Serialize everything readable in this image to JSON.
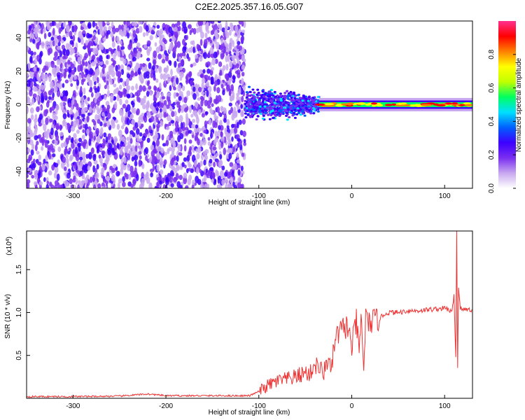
{
  "title": "C2E2.2025.357.16.05.G07",
  "chart_data": [
    {
      "type": "heatmap",
      "xlabel": "Height of straight line (km)",
      "ylabel": "Frequency (Hz)",
      "xlim": [
        -350,
        130
      ],
      "ylim": [
        -50,
        50
      ],
      "xticks": [
        -300,
        -200,
        -100,
        0,
        100
      ],
      "yticks": [
        -40,
        -20,
        0,
        20,
        40
      ],
      "colorbar": {
        "label": "Normalized spectral amplitude",
        "range": [
          0,
          1
        ],
        "ticks": [
          "0.0",
          "0.2",
          "0.4",
          "0.6",
          "0.8"
        ],
        "colors": [
          "#ffffff",
          "#c8a8f0",
          "#7a2ef0",
          "#3c00ff",
          "#0060ff",
          "#00e0ff",
          "#00ff60",
          "#c0ff00",
          "#ffff00",
          "#ff8000",
          "#ff0000",
          "#ff3090"
        ]
      },
      "regions": [
        {
          "x": [
            -350,
            -115
          ],
          "freq_band": [
            -50,
            50
          ],
          "amplitude": "0.1-0.3 (noise)"
        },
        {
          "x": [
            -115,
            -35
          ],
          "freq_band": [
            -12,
            12
          ],
          "amplitude": "0.3-0.6"
        },
        {
          "x": [
            -35,
            130
          ],
          "freq_band": [
            -2,
            2
          ],
          "amplitude": "0.6-1.0"
        }
      ]
    },
    {
      "type": "line",
      "xlabel": "Height of straight line (km)",
      "ylabel": "SNR (10 * v/v)",
      "yscale_label": "(x10",
      "yscale_exp": "4",
      "yscale_close": ")",
      "xlim": [
        -350,
        130
      ],
      "ylim": [
        0,
        1.95
      ],
      "xticks": [
        -300,
        -200,
        -100,
        0,
        100
      ],
      "yticks": [
        0.5,
        1.0,
        1.5
      ],
      "ytick_labels": [
        "0.5",
        "1.0",
        "1.5"
      ],
      "series": [
        {
          "color": "#ee3333",
          "x": [
            -350,
            -300,
            -250,
            -220,
            -200,
            -150,
            -110,
            -100,
            -90,
            -80,
            -70,
            -60,
            -50,
            -45,
            -40,
            -35,
            -30,
            -25,
            -22,
            -20,
            -15,
            -10,
            -5,
            0,
            5,
            8,
            10,
            13,
            15,
            18,
            20,
            25,
            30,
            35,
            40,
            50,
            60,
            70,
            80,
            90,
            100,
            105,
            108,
            110,
            112,
            113,
            114,
            115,
            117,
            120,
            125,
            130
          ],
          "y": [
            0.02,
            0.02,
            0.025,
            0.05,
            0.03,
            0.03,
            0.03,
            0.08,
            0.15,
            0.2,
            0.22,
            0.25,
            0.3,
            0.28,
            0.4,
            0.35,
            0.3,
            0.5,
            0.25,
            0.55,
            0.75,
            0.8,
            0.85,
            0.6,
            0.9,
            0.5,
            0.95,
            0.35,
            0.95,
            0.85,
            0.9,
            0.9,
            0.93,
            0.98,
            1.0,
            1.0,
            1.02,
            1.02,
            1.03,
            1.04,
            1.05,
            1.03,
            1.0,
            1.2,
            0.5,
            1.95,
            0.35,
            1.3,
            1.05,
            1.03,
            1.04,
            1.03
          ]
        }
      ]
    }
  ]
}
